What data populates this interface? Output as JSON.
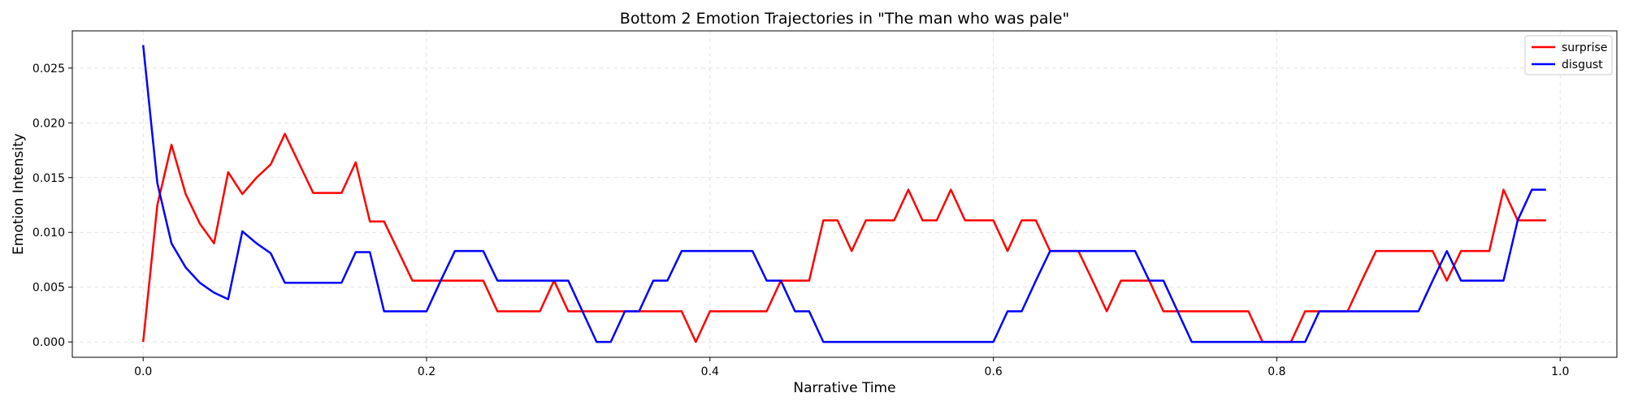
{
  "chart_data": {
    "type": "line",
    "title": "Bottom 2 Emotion Trajectories in \"The man who was pale\"",
    "xlabel": "Narrative Time",
    "ylabel": "Emotion Intensity",
    "xlim": [
      -0.05,
      1.04
    ],
    "ylim": [
      -0.0014,
      0.0284
    ],
    "xticks": [
      0.0,
      0.2,
      0.4,
      0.6,
      0.8,
      1.0
    ],
    "xtick_labels": [
      "0.0",
      "0.2",
      "0.4",
      "0.6",
      "0.8",
      "1.0"
    ],
    "yticks": [
      0.0,
      0.005,
      0.01,
      0.015,
      0.02,
      0.025
    ],
    "ytick_labels": [
      "0.000",
      "0.005",
      "0.010",
      "0.015",
      "0.020",
      "0.025"
    ],
    "grid": true,
    "legend_position": "top-right",
    "x": [
      0.0,
      0.01,
      0.02,
      0.03,
      0.04,
      0.05,
      0.06,
      0.07,
      0.08,
      0.09,
      0.1,
      0.11,
      0.12,
      0.13,
      0.14,
      0.15,
      0.16,
      0.17,
      0.18,
      0.19,
      0.2,
      0.21,
      0.22,
      0.23,
      0.24,
      0.25,
      0.26,
      0.27,
      0.28,
      0.29,
      0.3,
      0.31,
      0.32,
      0.33,
      0.34,
      0.35,
      0.36,
      0.37,
      0.38,
      0.39,
      0.4,
      0.41,
      0.42,
      0.43,
      0.44,
      0.45,
      0.46,
      0.47,
      0.48,
      0.49,
      0.5,
      0.51,
      0.52,
      0.53,
      0.54,
      0.55,
      0.56,
      0.57,
      0.58,
      0.59,
      0.6,
      0.61,
      0.62,
      0.63,
      0.64,
      0.65,
      0.66,
      0.67,
      0.68,
      0.69,
      0.7,
      0.71,
      0.72,
      0.73,
      0.74,
      0.75,
      0.76,
      0.77,
      0.78,
      0.79,
      0.8,
      0.81,
      0.82,
      0.83,
      0.84,
      0.85,
      0.86,
      0.87,
      0.88,
      0.89,
      0.9,
      0.91,
      0.92,
      0.93,
      0.94,
      0.95,
      0.96,
      0.97,
      0.98,
      0.99
    ],
    "series": [
      {
        "name": "surprise",
        "color": "#ff0000",
        "values": [
          0.0,
          0.0125,
          0.018,
          0.0135,
          0.0108,
          0.009,
          0.0155,
          0.0135,
          0.015,
          0.0162,
          0.019,
          0.0163,
          0.0136,
          0.0136,
          0.0136,
          0.0164,
          0.011,
          0.011,
          0.0083,
          0.0056,
          0.0056,
          0.0056,
          0.0056,
          0.0056,
          0.0056,
          0.0028,
          0.0028,
          0.0028,
          0.0028,
          0.0056,
          0.0028,
          0.0028,
          0.0028,
          0.0028,
          0.0028,
          0.0028,
          0.0028,
          0.0028,
          0.0028,
          0.0,
          0.0028,
          0.0028,
          0.0028,
          0.0028,
          0.0028,
          0.0056,
          0.0056,
          0.0056,
          0.0111,
          0.0111,
          0.0083,
          0.0111,
          0.0111,
          0.0111,
          0.0139,
          0.0111,
          0.0111,
          0.0139,
          0.0111,
          0.0111,
          0.0111,
          0.0083,
          0.0111,
          0.0111,
          0.0083,
          0.0083,
          0.0083,
          0.0056,
          0.0028,
          0.0056,
          0.0056,
          0.0056,
          0.0028,
          0.0028,
          0.0028,
          0.0028,
          0.0028,
          0.0028,
          0.0028,
          0.0,
          0.0,
          0.0,
          0.0028,
          0.0028,
          0.0028,
          0.0028,
          0.0056,
          0.0083,
          0.0083,
          0.0083,
          0.0083,
          0.0083,
          0.0056,
          0.0083,
          0.0083,
          0.0083,
          0.0139,
          0.0111,
          0.0111,
          0.0111
        ]
      },
      {
        "name": "disgust",
        "color": "#0000ff",
        "values": [
          0.0271,
          0.0145,
          0.009,
          0.0068,
          0.0054,
          0.0045,
          0.0039,
          0.0101,
          0.009,
          0.0081,
          0.0054,
          0.0054,
          0.0054,
          0.0054,
          0.0054,
          0.0082,
          0.0082,
          0.0028,
          0.0028,
          0.0028,
          0.0028,
          0.0056,
          0.0083,
          0.0083,
          0.0083,
          0.0056,
          0.0056,
          0.0056,
          0.0056,
          0.0056,
          0.0056,
          0.0028,
          0.0,
          0.0,
          0.0028,
          0.0028,
          0.0056,
          0.0056,
          0.0083,
          0.0083,
          0.0083,
          0.0083,
          0.0083,
          0.0083,
          0.0056,
          0.0056,
          0.0028,
          0.0028,
          0.0,
          0.0,
          0.0,
          0.0,
          0.0,
          0.0,
          0.0,
          0.0,
          0.0,
          0.0,
          0.0,
          0.0,
          0.0,
          0.0028,
          0.0028,
          0.0056,
          0.0083,
          0.0083,
          0.0083,
          0.0083,
          0.0083,
          0.0083,
          0.0083,
          0.0056,
          0.0056,
          0.0028,
          0.0,
          0.0,
          0.0,
          0.0,
          0.0,
          0.0,
          0.0,
          0.0,
          0.0,
          0.0028,
          0.0028,
          0.0028,
          0.0028,
          0.0028,
          0.0028,
          0.0028,
          0.0028,
          0.0056,
          0.0083,
          0.0056,
          0.0056,
          0.0056,
          0.0056,
          0.0111,
          0.0139,
          0.0139
        ]
      }
    ]
  }
}
